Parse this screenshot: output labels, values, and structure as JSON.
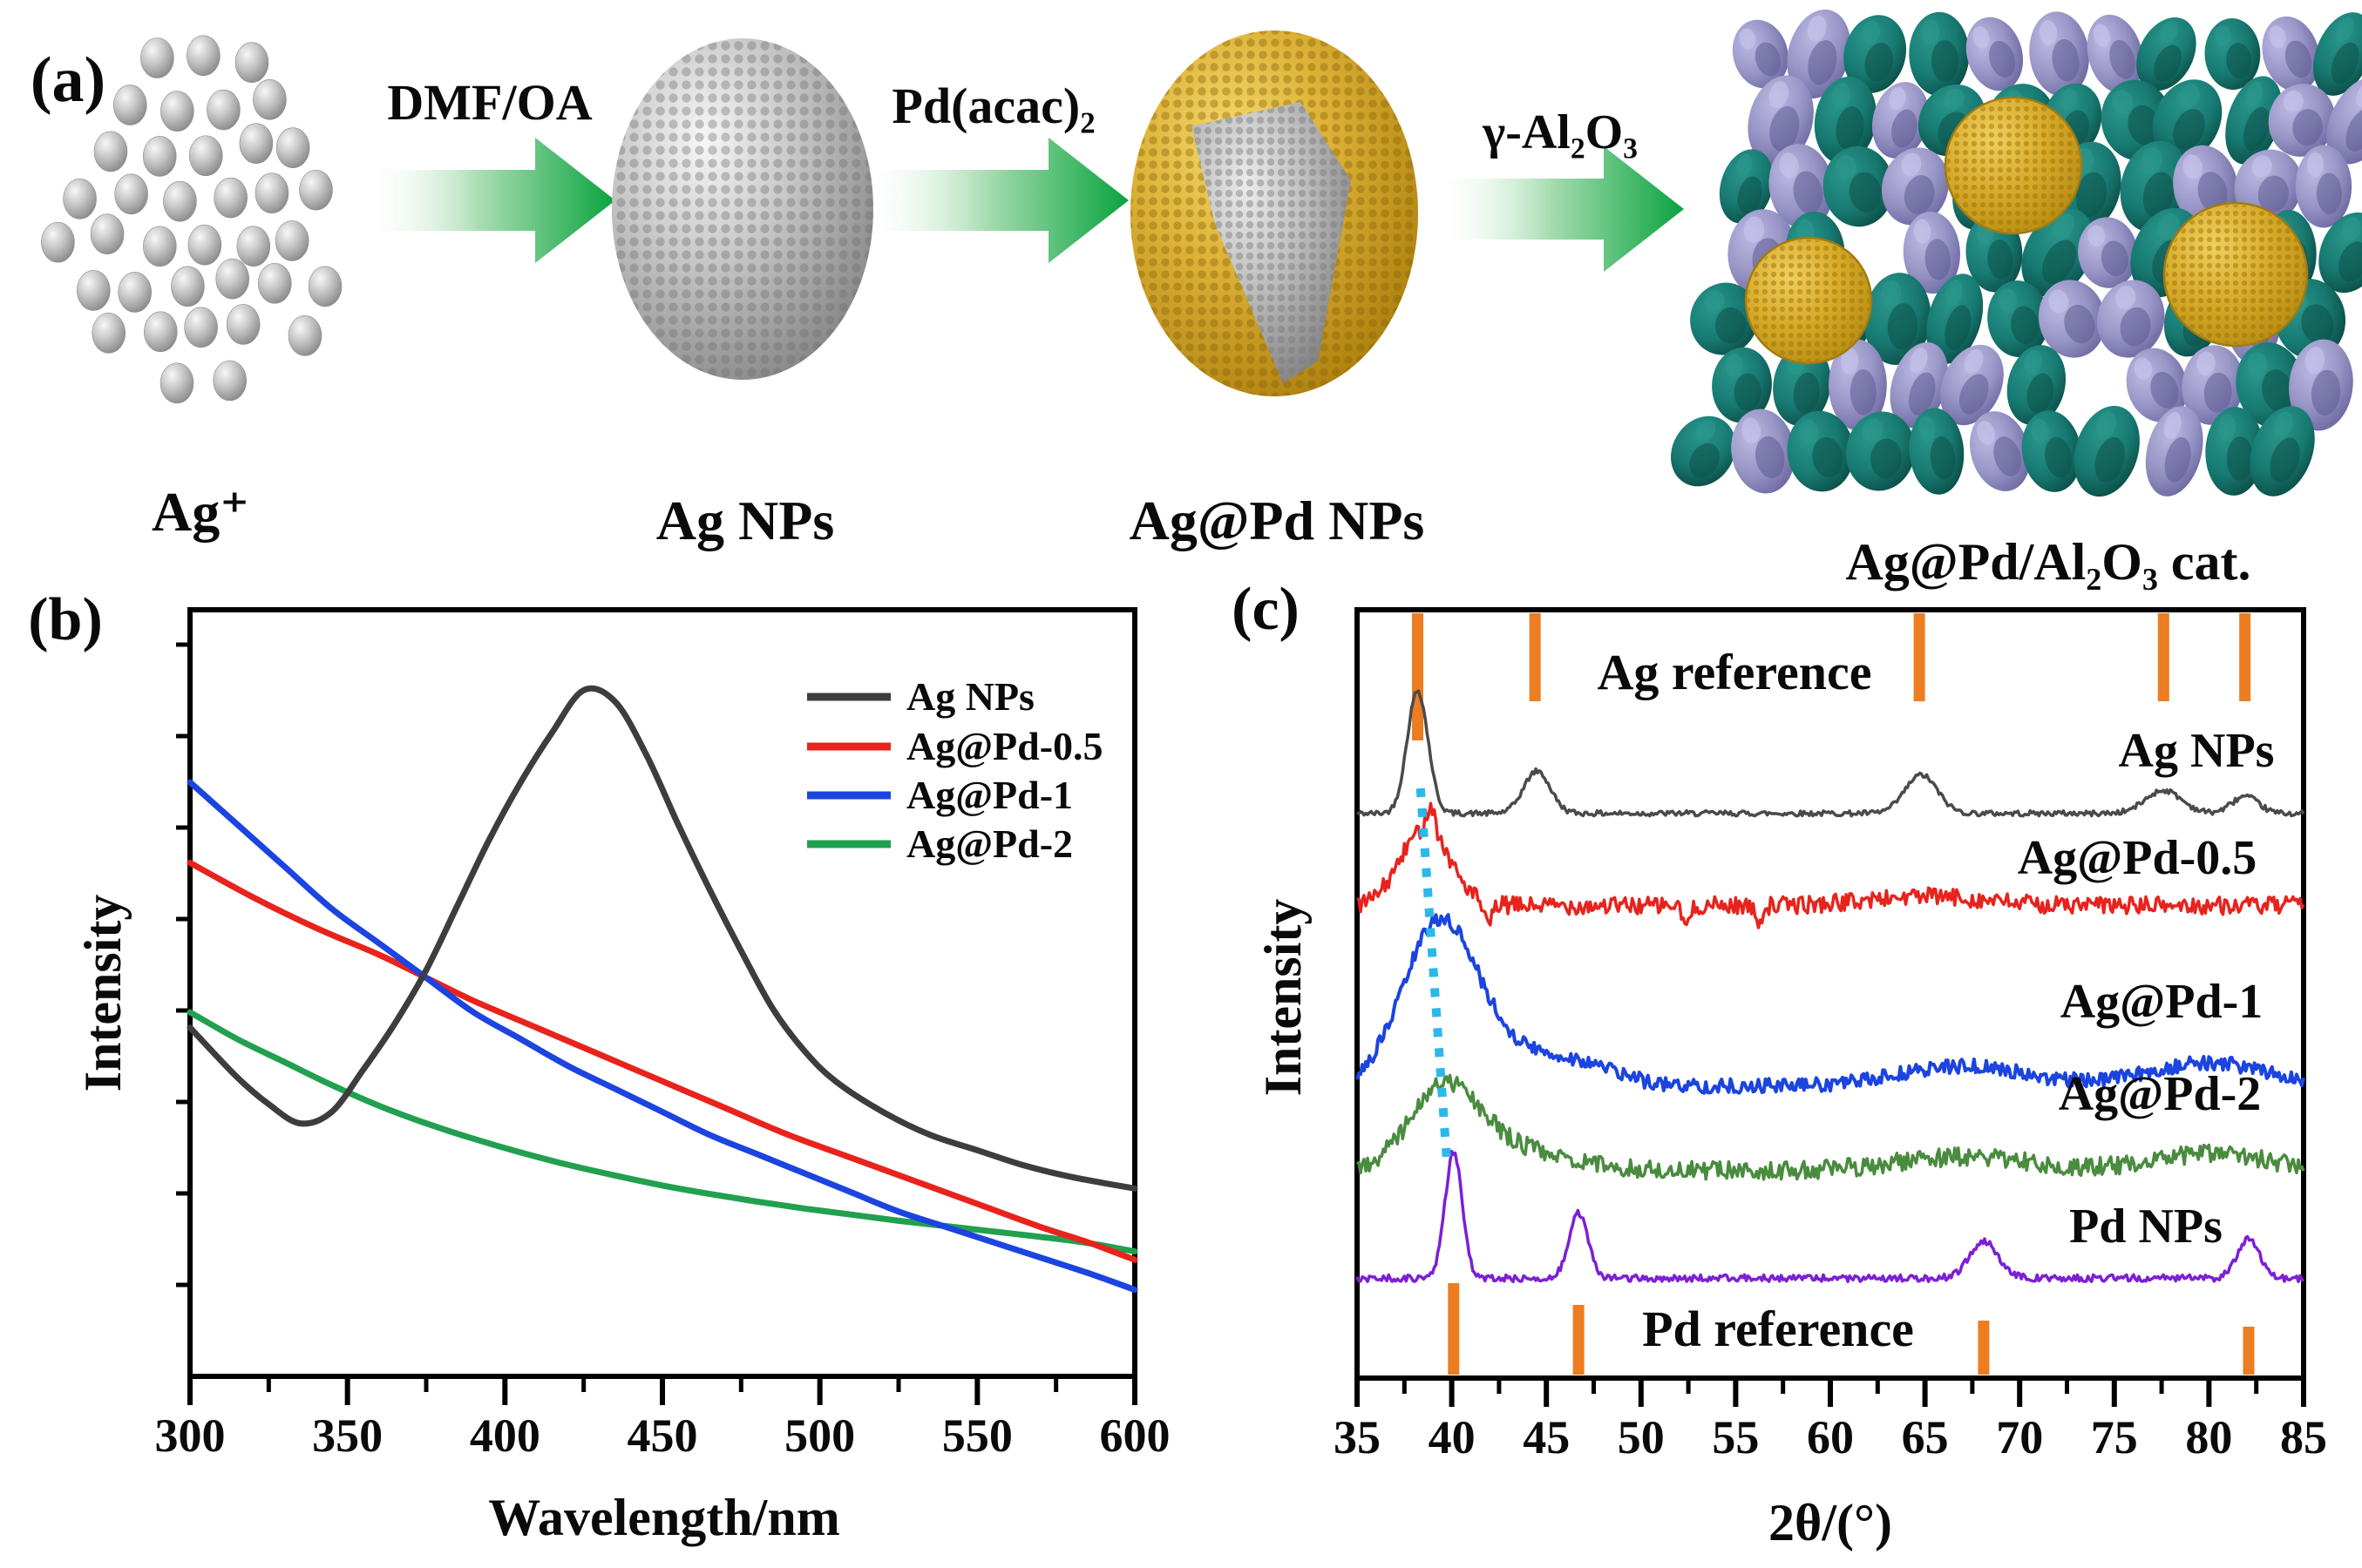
{
  "panel_a": {
    "label": "(a)",
    "species": [
      {
        "name": "Ag⁺"
      },
      {
        "name": "Ag NPs"
      },
      {
        "name": "Ag@Pd NPs"
      },
      {
        "name": "Ag@Pd/Al₂O₃ cat."
      }
    ],
    "arrows": [
      {
        "label": "DMF/OA"
      },
      {
        "label": "Pd(acac)₂"
      },
      {
        "label": "γ-Al₂O₃"
      }
    ]
  },
  "colors": {
    "arrow_green": "#0aa33f",
    "silver_gray": "#b9b9b9",
    "gold": "#d4a629",
    "alumina_teal": "#177a72",
    "alumina_lavender": "#9a97c8",
    "reference_orange": "#ec7d21",
    "guide_cyan": "#2cb8e8"
  },
  "chart_data": [
    {
      "id": "b",
      "type": "line",
      "panel_label": "(b)",
      "title": "",
      "xlabel": "Wavelength/nm",
      "ylabel": "Intensity",
      "xlim": [
        300,
        600
      ],
      "ylim": [
        0,
        1
      ],
      "grid": false,
      "xticks": [
        300,
        350,
        400,
        450,
        500,
        550,
        600
      ],
      "xminor_step": 25,
      "legend_position": "top-right",
      "series": [
        {
          "name": "Ag NPs",
          "color": "#3d3d3d",
          "points": [
            [
              300,
              0.455
            ],
            [
              315,
              0.39
            ],
            [
              325,
              0.355
            ],
            [
              335,
              0.33
            ],
            [
              345,
              0.345
            ],
            [
              355,
              0.4
            ],
            [
              365,
              0.46
            ],
            [
              375,
              0.53
            ],
            [
              385,
              0.615
            ],
            [
              395,
              0.7
            ],
            [
              405,
              0.775
            ],
            [
              415,
              0.84
            ],
            [
              425,
              0.895
            ],
            [
              435,
              0.88
            ],
            [
              445,
              0.81
            ],
            [
              455,
              0.72
            ],
            [
              465,
              0.635
            ],
            [
              475,
              0.555
            ],
            [
              485,
              0.48
            ],
            [
              495,
              0.425
            ],
            [
              505,
              0.385
            ],
            [
              520,
              0.345
            ],
            [
              535,
              0.315
            ],
            [
              550,
              0.295
            ],
            [
              565,
              0.275
            ],
            [
              580,
              0.26
            ],
            [
              600,
              0.245
            ]
          ]
        },
        {
          "name": "Ag@Pd-0.5",
          "color": "#e8231d",
          "points": [
            [
              300,
              0.67
            ],
            [
              320,
              0.625
            ],
            [
              340,
              0.585
            ],
            [
              360,
              0.55
            ],
            [
              375,
              0.52
            ],
            [
              390,
              0.49
            ],
            [
              410,
              0.455
            ],
            [
              430,
              0.42
            ],
            [
              450,
              0.385
            ],
            [
              470,
              0.35
            ],
            [
              490,
              0.315
            ],
            [
              510,
              0.285
            ],
            [
              530,
              0.255
            ],
            [
              550,
              0.225
            ],
            [
              570,
              0.195
            ],
            [
              585,
              0.175
            ],
            [
              600,
              0.152
            ]
          ]
        },
        {
          "name": "Ag@Pd-1",
          "color": "#1b44e0",
          "points": [
            [
              300,
              0.775
            ],
            [
              315,
              0.72
            ],
            [
              330,
              0.665
            ],
            [
              345,
              0.61
            ],
            [
              360,
              0.565
            ],
            [
              375,
              0.52
            ],
            [
              390,
              0.475
            ],
            [
              405,
              0.44
            ],
            [
              420,
              0.405
            ],
            [
              435,
              0.375
            ],
            [
              450,
              0.345
            ],
            [
              465,
              0.315
            ],
            [
              480,
              0.29
            ],
            [
              495,
              0.265
            ],
            [
              510,
              0.24
            ],
            [
              525,
              0.215
            ],
            [
              540,
              0.195
            ],
            [
              555,
              0.175
            ],
            [
              570,
              0.155
            ],
            [
              585,
              0.135
            ],
            [
              600,
              0.113
            ]
          ]
        },
        {
          "name": "Ag@Pd-2",
          "color": "#21a04f",
          "points": [
            [
              300,
              0.475
            ],
            [
              315,
              0.44
            ],
            [
              330,
              0.41
            ],
            [
              345,
              0.38
            ],
            [
              360,
              0.353
            ],
            [
              375,
              0.33
            ],
            [
              390,
              0.31
            ],
            [
              405,
              0.292
            ],
            [
              420,
              0.276
            ],
            [
              435,
              0.262
            ],
            [
              450,
              0.249
            ],
            [
              465,
              0.238
            ],
            [
              480,
              0.228
            ],
            [
              495,
              0.219
            ],
            [
              510,
              0.211
            ],
            [
              525,
              0.203
            ],
            [
              540,
              0.196
            ],
            [
              555,
              0.189
            ],
            [
              570,
              0.182
            ],
            [
              585,
              0.174
            ],
            [
              600,
              0.163
            ]
          ]
        }
      ]
    },
    {
      "id": "c",
      "type": "line",
      "panel_label": "(c)",
      "title": "",
      "xlabel": "2θ/(°)",
      "ylabel": "Intensity",
      "xlim": [
        35,
        85
      ],
      "grid": false,
      "xticks": [
        35,
        40,
        45,
        50,
        55,
        60,
        65,
        70,
        75,
        80,
        85
      ],
      "xminor_step": 2.5,
      "series": [
        {
          "name": "Ag NPs",
          "color": "#4a4a4a",
          "baseline": 0.735,
          "noise": 0.0035,
          "peaks": [
            {
              "center": 38.2,
              "height": 0.16,
              "width": 0.55
            },
            {
              "center": 44.5,
              "height": 0.055,
              "width": 0.7
            },
            {
              "center": 64.8,
              "height": 0.05,
              "width": 0.85
            },
            {
              "center": 77.6,
              "height": 0.03,
              "width": 0.95
            },
            {
              "center": 81.9,
              "height": 0.022,
              "width": 0.7
            }
          ],
          "peaks_2theta": [
            38.2,
            44.5,
            64.8,
            77.6,
            81.9
          ]
        },
        {
          "name": "Ag@Pd-0.5",
          "color": "#e8231d",
          "baseline": 0.615,
          "noise": 0.0115,
          "peaks": [
            {
              "center": 38.6,
              "height": 0.1,
              "width": 1.3
            },
            {
              "center": 65.0,
              "height": 0.012,
              "width": 3.0
            }
          ],
          "spikes": [
            {
              "center": 38.9,
              "height": 0.035
            },
            {
              "center": 41.9,
              "height": -0.03
            },
            {
              "center": 52.4,
              "height": -0.025
            },
            {
              "center": 56.2,
              "height": -0.018
            }
          ],
          "peaks_2theta": [
            38.6
          ]
        },
        {
          "name": "Ag@Pd-1",
          "color": "#1b44e0",
          "baseline": 0.38,
          "noise": 0.0095,
          "peaks": [
            {
              "center": 39.3,
              "height": 0.19,
              "width": 1.9
            },
            {
              "center": 42.2,
              "height": 0.045,
              "width": 3.0
            },
            {
              "center": 47.0,
              "height": 0.02,
              "width": 2.0
            },
            {
              "center": 67.0,
              "height": 0.026,
              "width": 3.3
            },
            {
              "center": 80.0,
              "height": 0.03,
              "width": 3.2
            }
          ],
          "peaks_2theta": [
            39.3,
            67.0,
            80.0
          ]
        },
        {
          "name": "Ag@Pd-2",
          "color": "#4a8c3f",
          "baseline": 0.27,
          "noise": 0.012,
          "peaks": [
            {
              "center": 39.6,
              "height": 0.1,
              "width": 1.8
            },
            {
              "center": 43.0,
              "height": 0.028,
              "width": 3.0
            },
            {
              "center": 67.0,
              "height": 0.018,
              "width": 3.5
            },
            {
              "center": 80.0,
              "height": 0.022,
              "width": 3.0
            }
          ],
          "peaks_2theta": [
            39.6,
            67.0,
            80.0
          ]
        },
        {
          "name": "Pd NPs",
          "color": "#7c1fd6",
          "baseline": 0.13,
          "noise": 0.0045,
          "peaks": [
            {
              "center": 40.1,
              "height": 0.165,
              "width": 0.45
            },
            {
              "center": 46.7,
              "height": 0.085,
              "width": 0.5
            },
            {
              "center": 68.1,
              "height": 0.048,
              "width": 0.75
            },
            {
              "center": 82.1,
              "height": 0.05,
              "width": 0.6
            }
          ],
          "peaks_2theta": [
            40.1,
            46.7,
            68.1,
            82.1
          ]
        }
      ],
      "references": [
        {
          "name": "Ag reference",
          "color": "#ec7d21",
          "location": "top",
          "positions": [
            38.2,
            44.4,
            64.7,
            77.6,
            81.9
          ]
        },
        {
          "name": "Pd reference",
          "color": "#ec7d21",
          "location": "bottom",
          "positions": [
            40.1,
            46.7,
            68.1,
            82.1
          ]
        }
      ],
      "guide_line": {
        "color": "#2cb8e8",
        "style": "dotted",
        "x_top": 38.35,
        "x_bottom": 39.75
      }
    }
  ]
}
